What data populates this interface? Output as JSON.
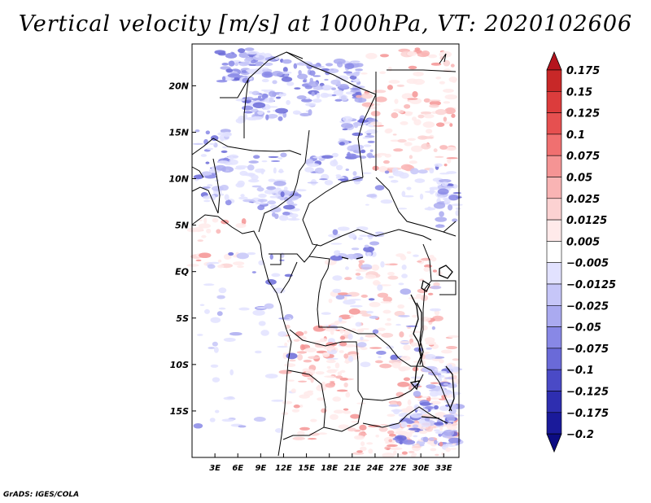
{
  "title": "Vertical velocity [m/s] at 1000hPa, VT: 2020102606",
  "footer": "GrADS: IGES/COLA",
  "map": {
    "lat_labels": [
      "20N",
      "15N",
      "10N",
      "5N",
      "EQ",
      "5S",
      "10S",
      "15S"
    ],
    "lat_values": [
      20,
      15,
      10,
      5,
      0,
      -5,
      -10,
      -15
    ],
    "lon_labels": [
      "3E",
      "6E",
      "9E",
      "12E",
      "15E",
      "18E",
      "21E",
      "24E",
      "27E",
      "30E",
      "33E"
    ],
    "lon_values": [
      3,
      6,
      9,
      12,
      15,
      18,
      21,
      24,
      27,
      30,
      33
    ],
    "lon_range": [
      0,
      35
    ],
    "lat_range": [
      -20,
      24.5
    ]
  },
  "colorbar": {
    "labels": [
      "0.175",
      "0.15",
      "0.125",
      "0.1",
      "0.075",
      "0.05",
      "0.025",
      "0.0125",
      "0.005",
      "−0.005",
      "−0.0125",
      "−0.025",
      "−0.05",
      "−0.075",
      "−0.1",
      "−0.125",
      "−0.175",
      "−0.2"
    ],
    "colors": [
      "#b4141e",
      "#c82828",
      "#dc3c3c",
      "#e65050",
      "#f07070",
      "#f59494",
      "#f9b4b4",
      "#fcd2d2",
      "#ffeaea",
      "#ffffff",
      "#e2e2ff",
      "#c6c6f8",
      "#aaaaf0",
      "#8888e6",
      "#6a6ad8",
      "#4a4ac6",
      "#2e2eb0",
      "#1a1a9a",
      "#0c0c82"
    ]
  }
}
